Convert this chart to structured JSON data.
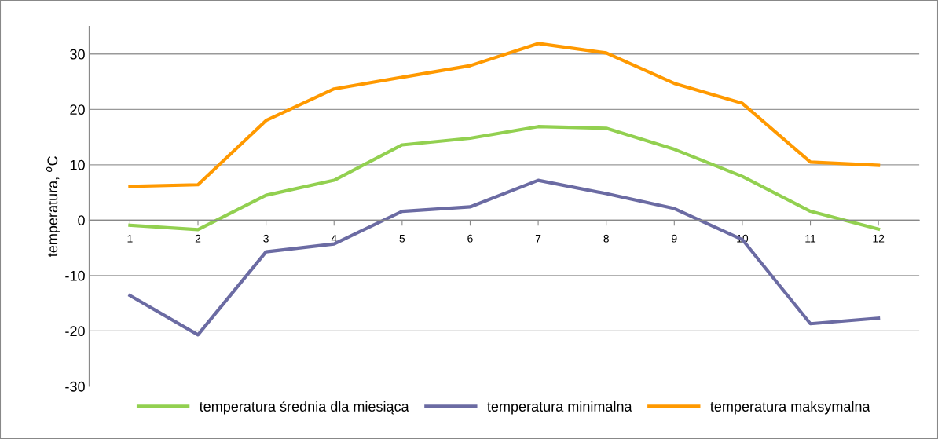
{
  "chart_data": {
    "type": "line",
    "ylabel": "temperatura, $^{o}$C",
    "categories": [
      "1",
      "2",
      "3",
      "4",
      "5",
      "6",
      "7",
      "8",
      "9",
      "10",
      "11",
      "12"
    ],
    "series": [
      {
        "name": "temperatura średnia dla miesiąca",
        "color": "#92d050",
        "values": [
          -0.9,
          -1.7,
          4.5,
          7.2,
          13.6,
          14.8,
          16.9,
          16.6,
          12.8,
          7.9,
          1.6,
          -1.6
        ]
      },
      {
        "name": "temperatura minimalna",
        "color": "#6b6ba3",
        "values": [
          -13.6,
          -20.7,
          -5.7,
          -4.3,
          1.6,
          2.4,
          7.2,
          4.8,
          2.1,
          -3.5,
          -18.7,
          -17.7
        ]
      },
      {
        "name": "temperatura maksymalna",
        "color": "#ff9900",
        "values": [
          6.1,
          6.4,
          18.0,
          23.7,
          25.8,
          27.9,
          31.9,
          30.2,
          24.7,
          21.1,
          10.5,
          9.9
        ]
      }
    ],
    "ylim": [
      -30,
      35
    ],
    "yticks": [
      -30,
      -20,
      -10,
      0,
      10,
      20,
      30
    ],
    "grid": "y",
    "legend": "bottom",
    "marker": "none",
    "line_style": "solid"
  }
}
